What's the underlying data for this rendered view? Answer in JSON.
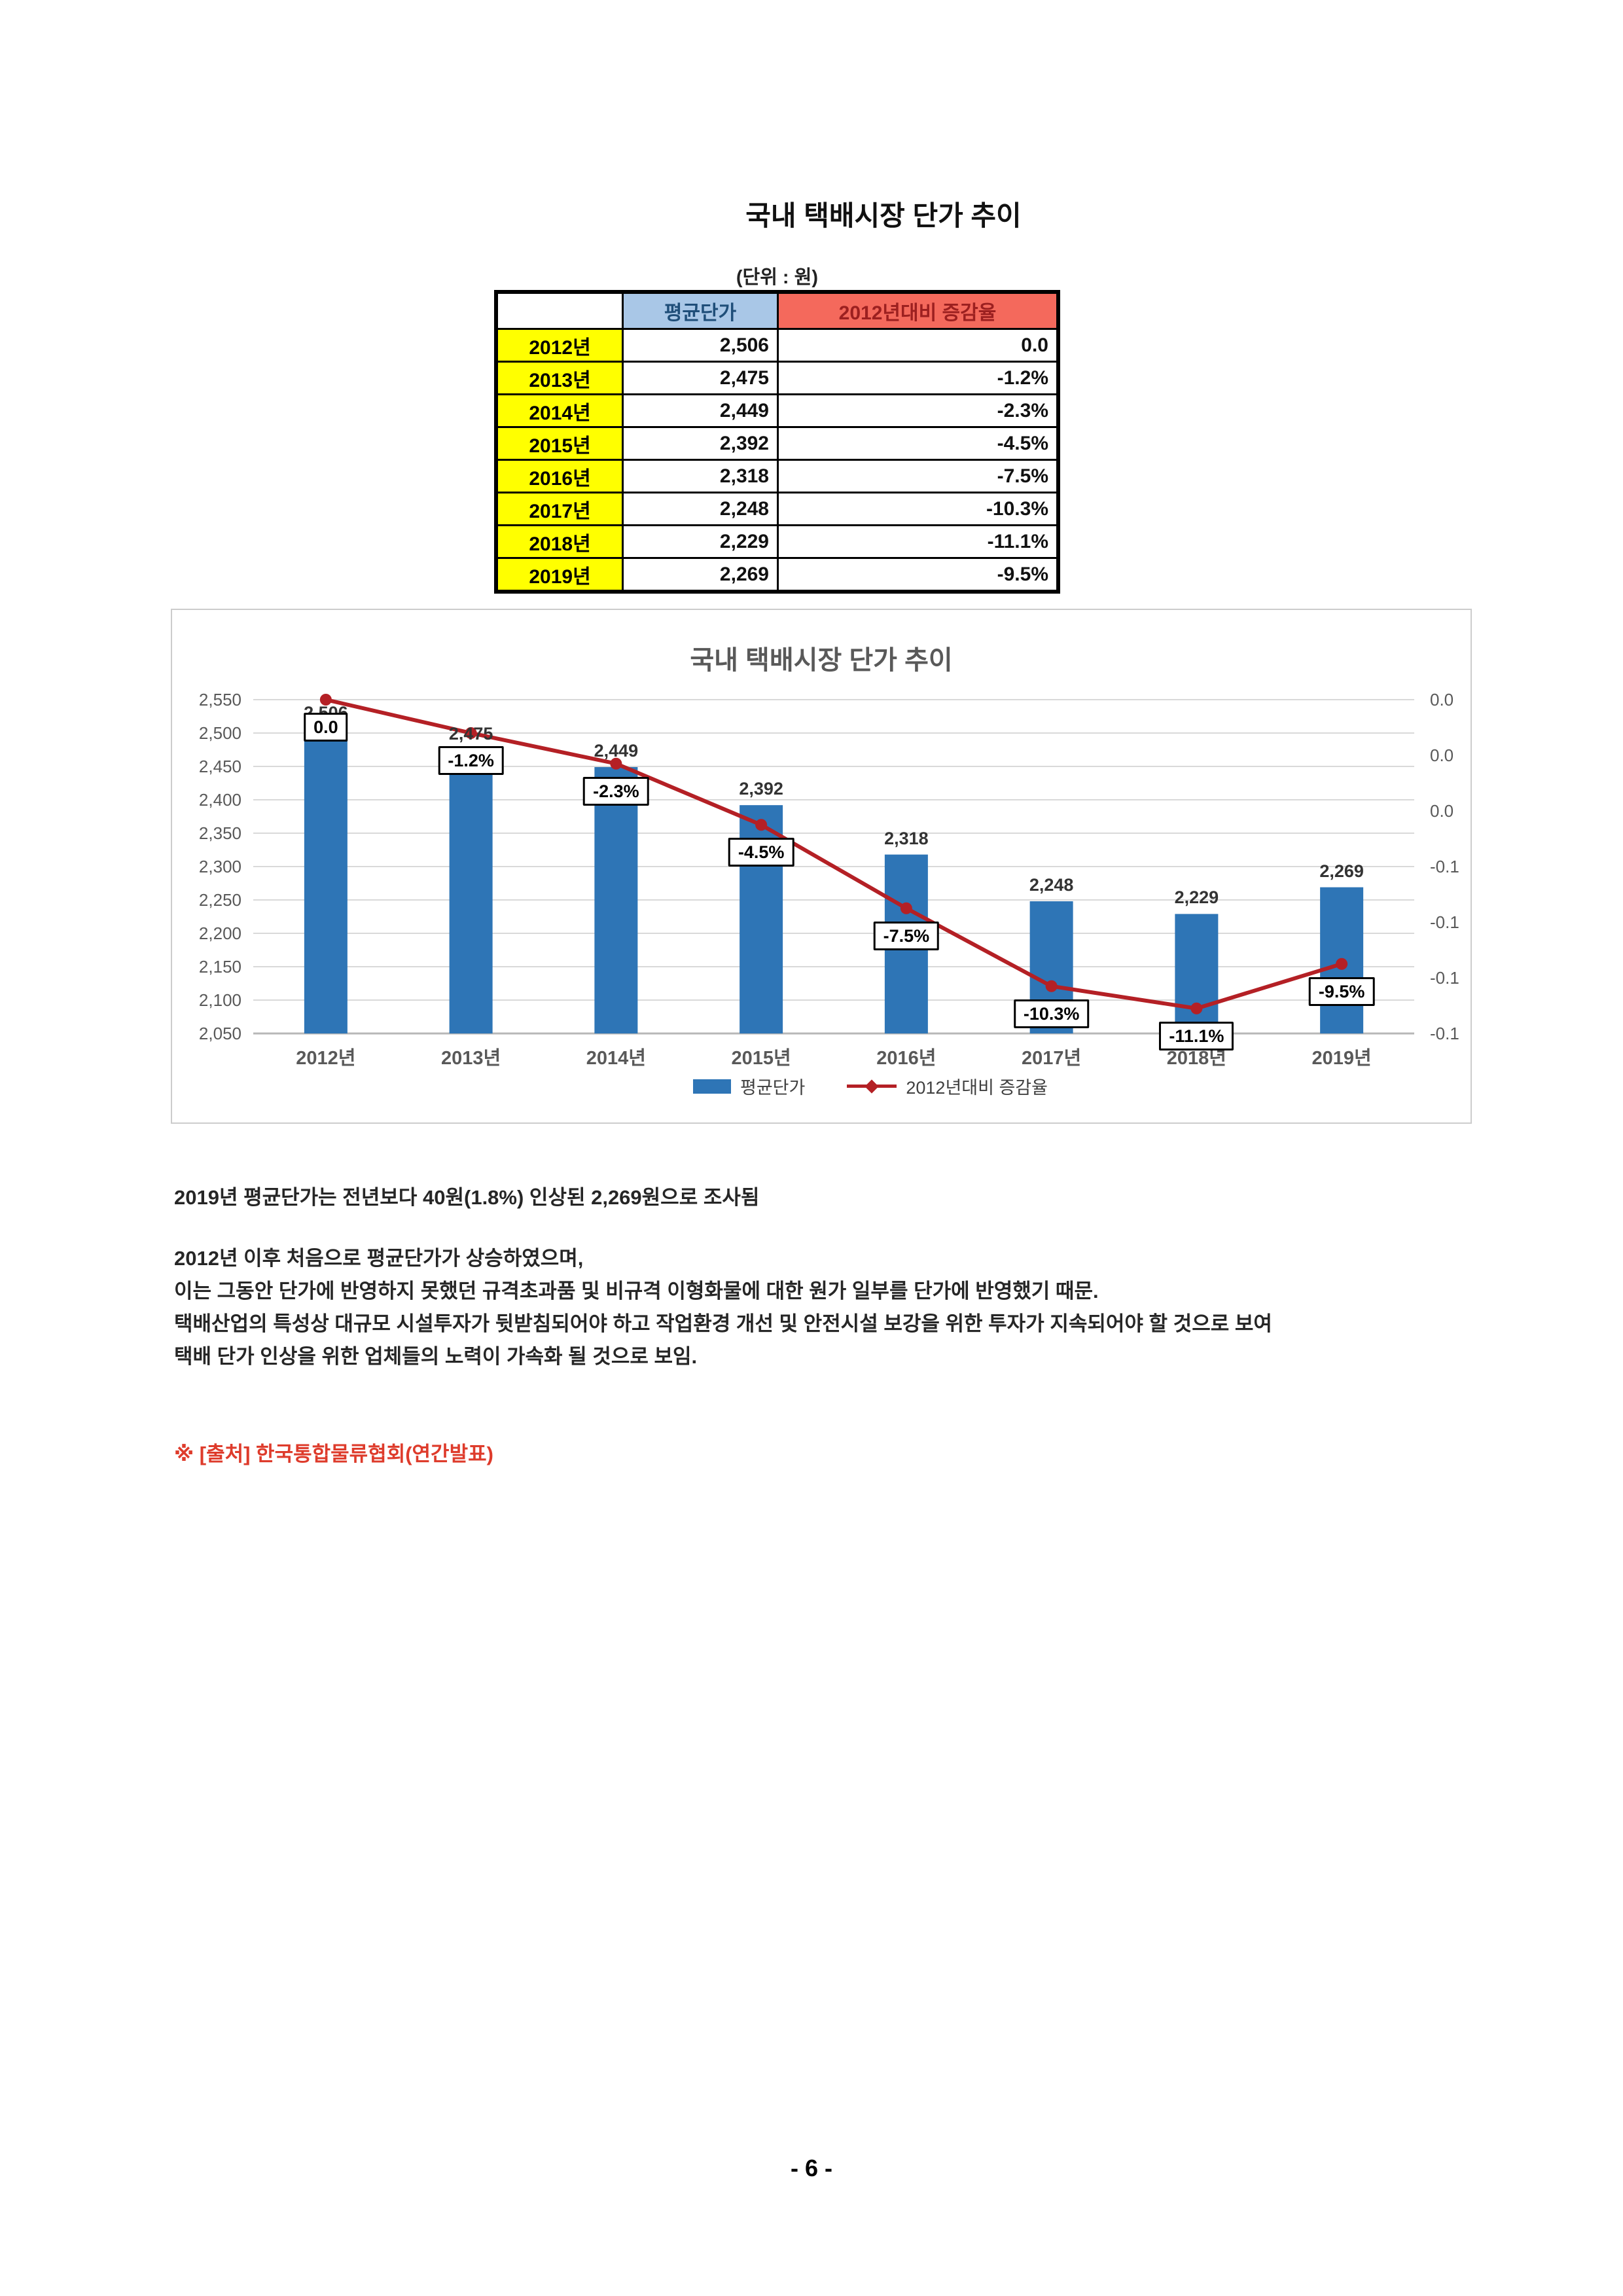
{
  "doc": {
    "title": "국내 택배시장 단가 추이",
    "unit_label": "(단위 : 원)"
  },
  "table": {
    "headers": [
      "",
      "평균단가",
      "2012년대비 증감율"
    ],
    "rows": [
      {
        "year": "2012년",
        "price": "2,506",
        "change": "0.0"
      },
      {
        "year": "2013년",
        "price": "2,475",
        "change": "-1.2%"
      },
      {
        "year": "2014년",
        "price": "2,449",
        "change": "-2.3%"
      },
      {
        "year": "2015년",
        "price": "2,392",
        "change": "-4.5%"
      },
      {
        "year": "2016년",
        "price": "2,318",
        "change": "-7.5%"
      },
      {
        "year": "2017년",
        "price": "2,248",
        "change": "-10.3%"
      },
      {
        "year": "2018년",
        "price": "2,229",
        "change": "-11.1%"
      },
      {
        "year": "2019년",
        "price": "2,269",
        "change": "-9.5%"
      }
    ]
  },
  "chart_data": {
    "type": "bar",
    "subtype": "combo-bar-line",
    "title": "국내 택배시장 단가 추이",
    "categories": [
      "2012년",
      "2013년",
      "2014년",
      "2015년",
      "2016년",
      "2017년",
      "2018년",
      "2019년"
    ],
    "series": [
      {
        "name": "평균단가",
        "chart": "bar",
        "color": "#2E75B6",
        "values": [
          2506,
          2475,
          2449,
          2392,
          2318,
          2248,
          2229,
          2269
        ],
        "labels": [
          "2,506",
          "2,475",
          "2,449",
          "2,392",
          "2,318",
          "2,248",
          "2,229",
          "2,269"
        ]
      },
      {
        "name": "2012년대비 증감율",
        "chart": "line",
        "color": "#B42025",
        "values_pct": [
          0.0,
          -1.2,
          -2.3,
          -4.5,
          -7.5,
          -10.3,
          -11.1,
          -9.5
        ],
        "labels": [
          "0.0",
          "-1.2%",
          "-2.3%",
          "-4.5%",
          "-7.5%",
          "-10.3%",
          "-11.1%",
          "-9.5%"
        ]
      }
    ],
    "left_axis": {
      "min": 2050,
      "max": 2550,
      "step": 50,
      "tick_labels": [
        "2,550",
        "2,500",
        "2,450",
        "2,400",
        "2,350",
        "2,300",
        "2,250",
        "2,200",
        "2,150",
        "2,100",
        "2,050"
      ]
    },
    "right_axis": {
      "min": -0.12,
      "max": 0.0,
      "step": 0.02,
      "tick_labels": [
        "0.0",
        "0.0",
        "0.0",
        "-0.1",
        "-0.1",
        "-0.1",
        "-0.1"
      ]
    },
    "grid": true,
    "legend_position": "bottom",
    "legend": [
      "평균단가",
      "2012년대비 증감율"
    ]
  },
  "body": {
    "summary": "2019년 평균단가는 전년보다 40원(1.8%) 인상된 2,269원으로 조사됨",
    "lines": [
      "2012년 이후 처음으로 평균단가가 상승하였으며,",
      "이는 그동안 단가에 반영하지 못했던 규격초과품 및 비규격 이형화물에 대한 원가 일부를 단가에 반영했기 때문.",
      "택배산업의 특성상 대규모 시설투자가 뒷받침되어야 하고 작업환경 개선 및 안전시설 보강을 위한 투자가 지속되어야 할 것으로 보여",
      "택배 단가 인상을 위한 업체들의 노력이 가속화 될 것으로 보임."
    ],
    "source": "※ [출처] 한국통합물류협회(연간발표)"
  },
  "page": {
    "number_label": "- 6 -"
  }
}
